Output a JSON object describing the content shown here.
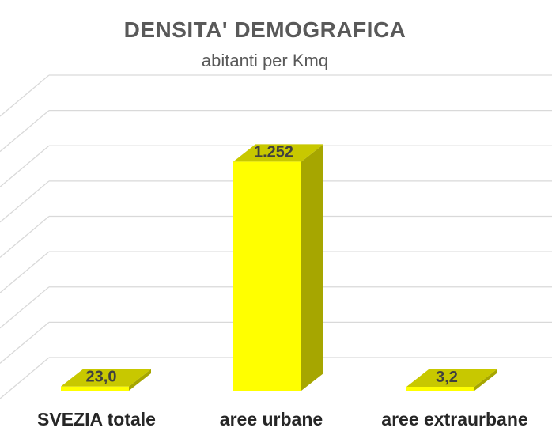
{
  "chart_data": {
    "type": "bar",
    "title": "DENSITA' DEMOGRAFICA",
    "subtitle": "abitanti per Kmq",
    "categories": [
      "SVEZIA totale",
      "aree urbane",
      "aree extraurbane"
    ],
    "values": [
      23.0,
      1252,
      3.2
    ],
    "data_labels": [
      "23,0",
      "1.252",
      "3,2"
    ],
    "ylim": [
      0,
      1500
    ],
    "grid": true,
    "legend": "none",
    "style": "3d",
    "colors": {
      "bar_front": "#ffff00",
      "bar_side": "#a6a600",
      "bar_top": "#c8c800",
      "grid": "#d9d9d9"
    }
  }
}
